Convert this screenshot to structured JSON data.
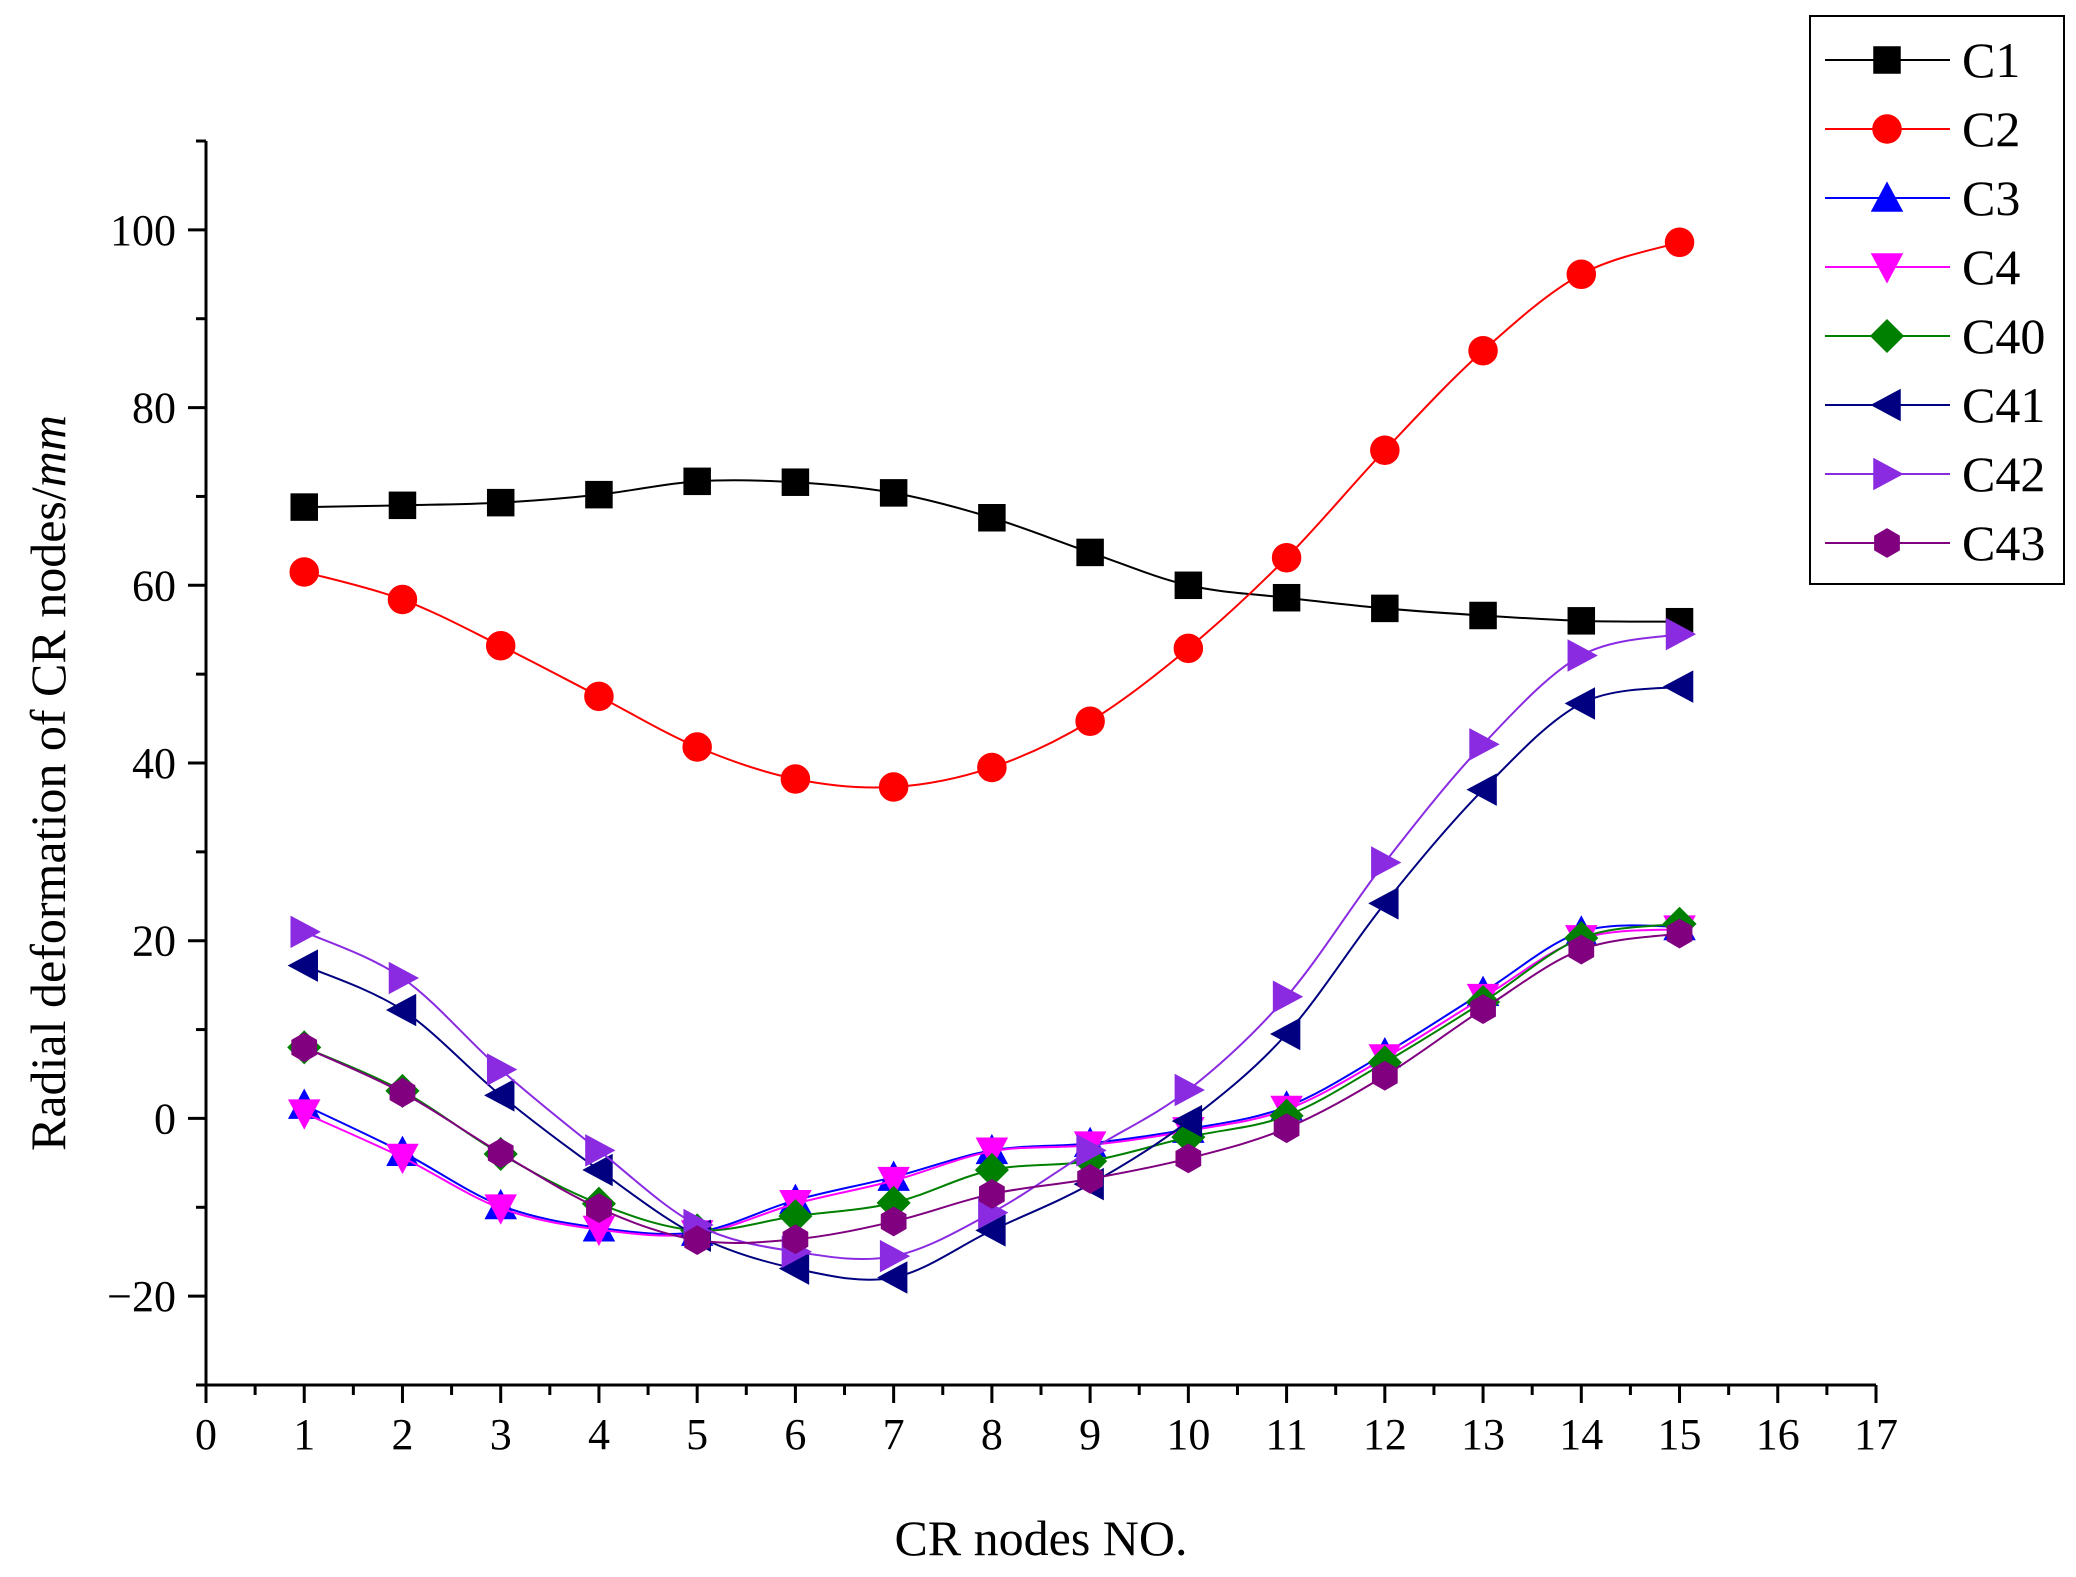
{
  "chart_data": {
    "type": "line",
    "xlabel": "CR nodes NO.",
    "ylabel_main": "Radial deformation of CR nodes/",
    "ylabel_unit": "mm",
    "xlim": [
      0,
      17
    ],
    "ylim": [
      -30,
      110
    ],
    "x_ticks": [
      0,
      1,
      2,
      3,
      4,
      5,
      6,
      7,
      8,
      9,
      10,
      11,
      12,
      13,
      14,
      15,
      16,
      17
    ],
    "y_ticks": [
      -20,
      0,
      20,
      40,
      60,
      80,
      100
    ],
    "y_tick_labels": [
      "−20",
      "0",
      "20",
      "40",
      "60",
      "80",
      "100"
    ],
    "x": [
      1,
      2,
      3,
      4,
      5,
      6,
      7,
      8,
      9,
      10,
      11,
      12,
      13,
      14,
      15
    ],
    "grid": false,
    "legend_position": "top-right",
    "series": [
      {
        "name": "C1",
        "color": "#000000",
        "marker": "square",
        "values": [
          68.8,
          69.0,
          69.3,
          70.2,
          71.7,
          71.6,
          70.4,
          67.6,
          63.7,
          60.0,
          58.6,
          57.4,
          56.6,
          56.0,
          55.9
        ]
      },
      {
        "name": "C2",
        "color": "#ff0000",
        "marker": "circle",
        "values": [
          61.5,
          58.4,
          53.2,
          47.5,
          41.8,
          38.2,
          37.3,
          39.5,
          44.7,
          52.9,
          63.1,
          75.2,
          86.4,
          95.0,
          98.6
        ]
      },
      {
        "name": "C3",
        "color": "#0000ff",
        "marker": "triangle-up",
        "values": [
          1.5,
          -3.8,
          -9.8,
          -12.3,
          -12.8,
          -9.2,
          -6.6,
          -3.6,
          -2.8,
          -1.2,
          1.3,
          7.3,
          14.2,
          21.0,
          21.6
        ]
      },
      {
        "name": "C4",
        "color": "#ff00ff",
        "marker": "triangle-down",
        "values": [
          0.6,
          -4.4,
          -10.1,
          -12.5,
          -13.0,
          -9.6,
          -7.0,
          -3.7,
          -3.0,
          -1.4,
          1.0,
          6.8,
          13.6,
          20.2,
          21.3
        ]
      },
      {
        "name": "C40",
        "color": "#008000",
        "marker": "diamond",
        "values": [
          8.0,
          3.1,
          -4.0,
          -9.6,
          -12.6,
          -11.0,
          -9.5,
          -5.8,
          -4.8,
          -2.1,
          0.3,
          6.3,
          13.1,
          20.3,
          21.9
        ]
      },
      {
        "name": "C41",
        "color": "#000080",
        "marker": "triangle-left",
        "values": [
          17.2,
          12.2,
          2.6,
          -5.8,
          -13.2,
          -16.9,
          -17.9,
          -12.6,
          -7.4,
          -0.3,
          9.5,
          24.2,
          37.0,
          46.7,
          48.6
        ]
      },
      {
        "name": "C42",
        "color": "#8a2be2",
        "marker": "triangle-right",
        "values": [
          21.0,
          15.8,
          5.5,
          -3.6,
          -12.0,
          -15.0,
          -15.5,
          -10.6,
          -3.6,
          3.2,
          13.7,
          28.8,
          42.1,
          52.1,
          54.5
        ]
      },
      {
        "name": "C43",
        "color": "#800080",
        "marker": "hexagon",
        "values": [
          8.0,
          2.9,
          -3.9,
          -10.1,
          -13.7,
          -13.6,
          -11.6,
          -8.5,
          -6.8,
          -4.5,
          -1.1,
          4.8,
          12.3,
          19.0,
          20.8
        ]
      }
    ]
  }
}
